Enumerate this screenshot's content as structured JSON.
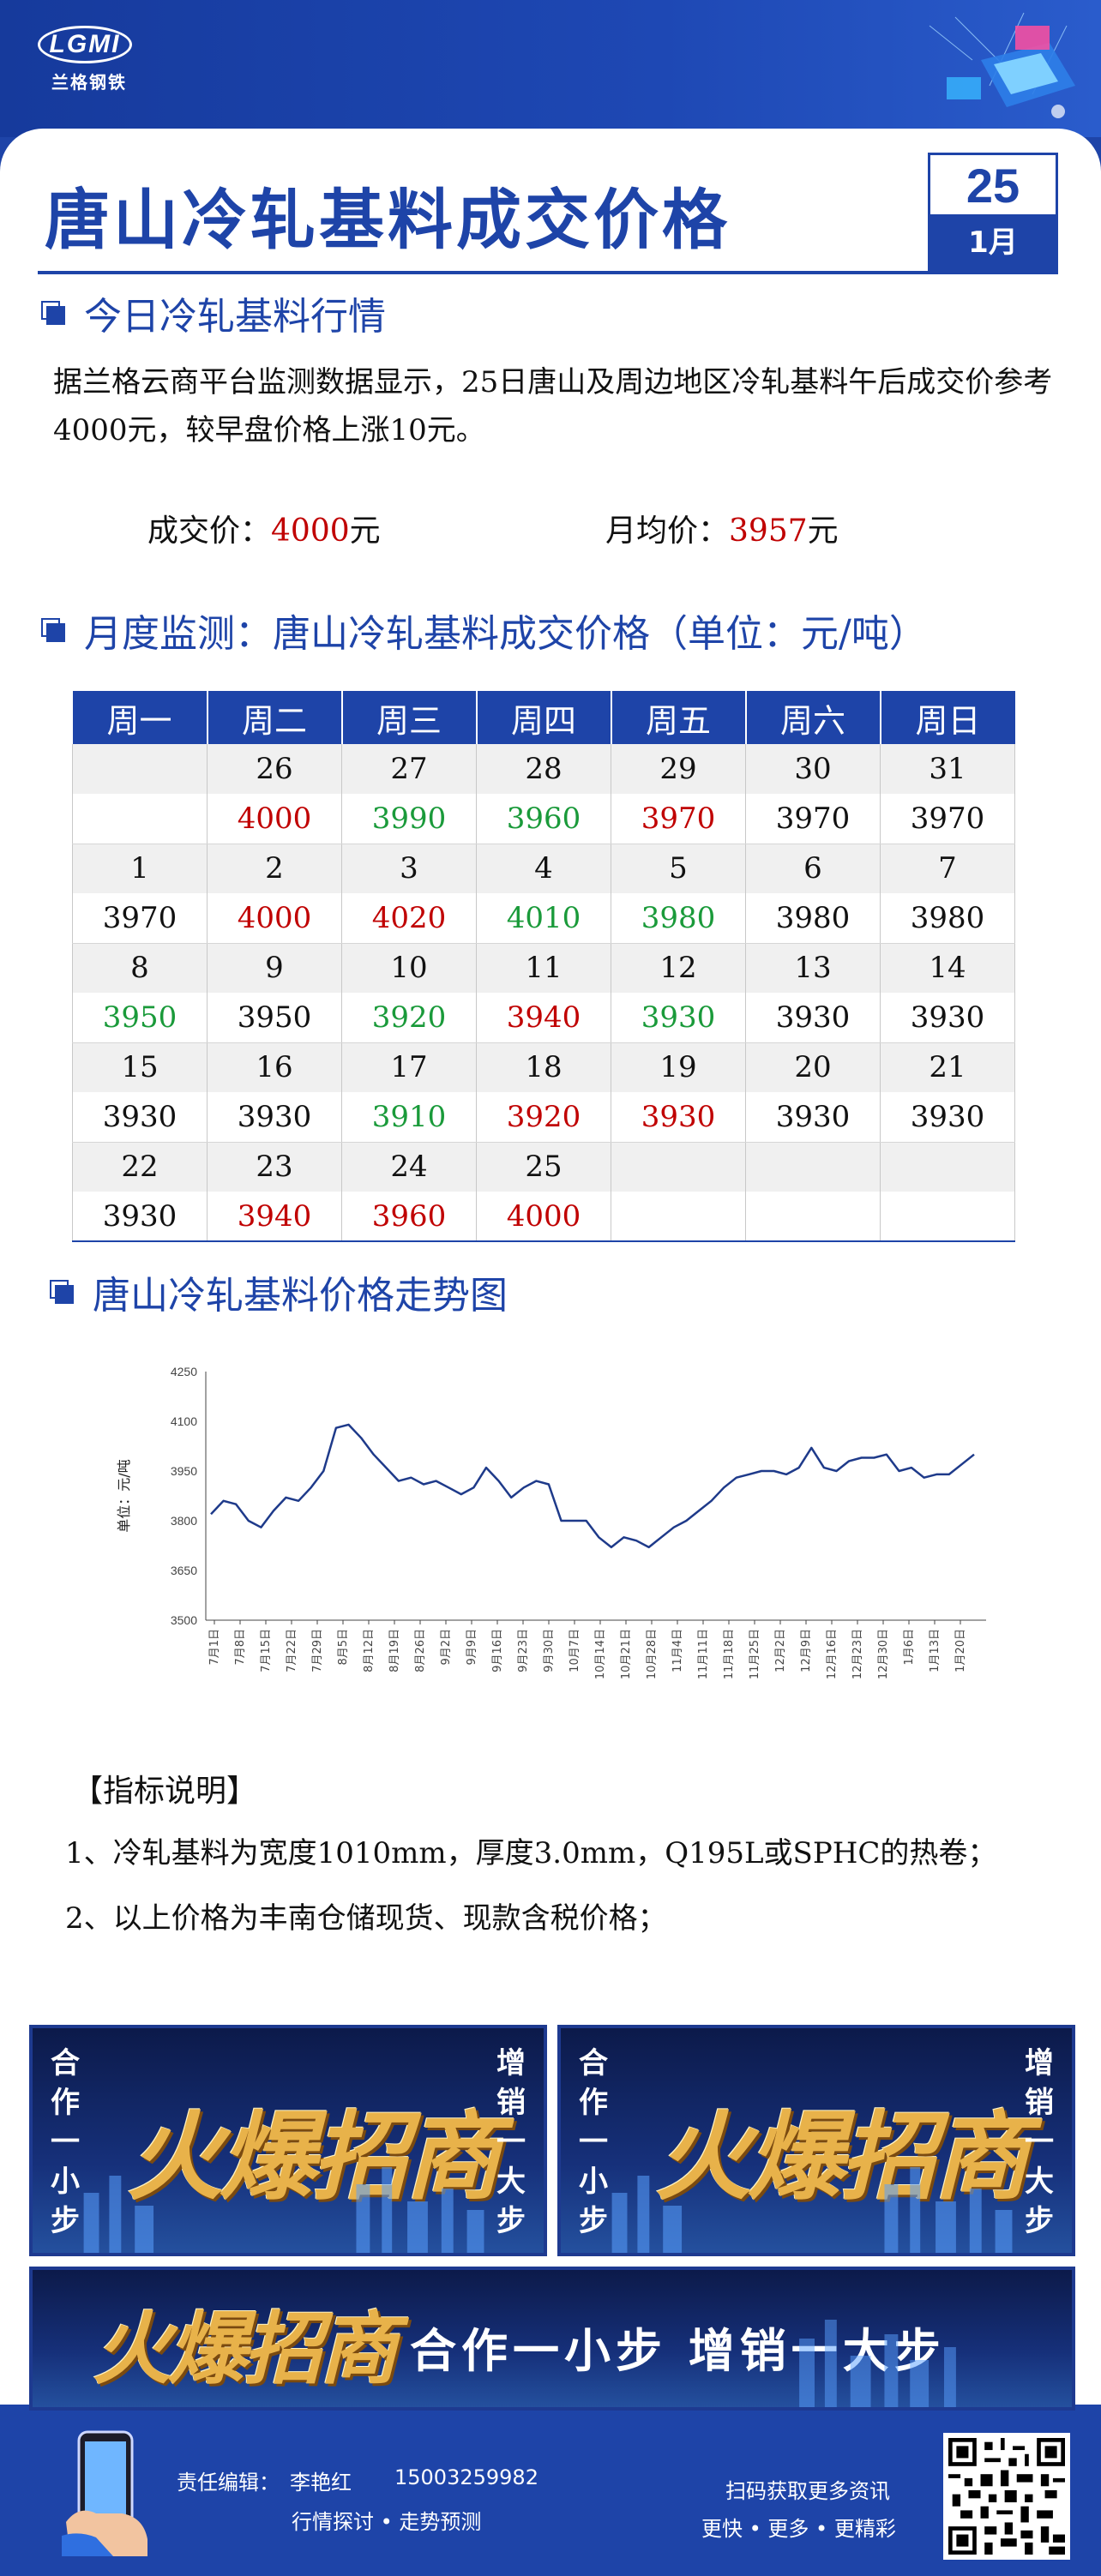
{
  "header": {
    "logo_mark": "LGMI",
    "logo_text": "兰格钢铁",
    "title": "唐山冷轧基料成交价格",
    "date_day": "25",
    "date_month": "1月"
  },
  "today": {
    "heading": "今日冷轧基料行情",
    "paragraph": "据兰格云商平台监测数据显示，25日唐山及周边地区冷轧基料午后成交价参考4000元，较早盘价格上涨10元。",
    "deal_label": "成交价：",
    "deal_value": "4000",
    "deal_unit": "元",
    "avg_label": "月均价：",
    "avg_value": "3957",
    "avg_unit": "元"
  },
  "monthly": {
    "heading": "月度监测：唐山冷轧基料成交价格（单位：元/吨）",
    "weekdays": [
      "周一",
      "周二",
      "周三",
      "周四",
      "周五",
      "周六",
      "周日"
    ],
    "weeks": [
      [
        {
          "d": "",
          "p": "",
          "t": ""
        },
        {
          "d": "26",
          "p": "4000",
          "t": "up"
        },
        {
          "d": "27",
          "p": "3990",
          "t": "down"
        },
        {
          "d": "28",
          "p": "3960",
          "t": "down"
        },
        {
          "d": "29",
          "p": "3970",
          "t": "up"
        },
        {
          "d": "30",
          "p": "3970",
          "t": ""
        },
        {
          "d": "31",
          "p": "3970",
          "t": ""
        }
      ],
      [
        {
          "d": "1",
          "p": "3970",
          "t": ""
        },
        {
          "d": "2",
          "p": "4000",
          "t": "up"
        },
        {
          "d": "3",
          "p": "4020",
          "t": "up"
        },
        {
          "d": "4",
          "p": "4010",
          "t": "down"
        },
        {
          "d": "5",
          "p": "3980",
          "t": "down"
        },
        {
          "d": "6",
          "p": "3980",
          "t": ""
        },
        {
          "d": "7",
          "p": "3980",
          "t": ""
        }
      ],
      [
        {
          "d": "8",
          "p": "3950",
          "t": "down"
        },
        {
          "d": "9",
          "p": "3950",
          "t": ""
        },
        {
          "d": "10",
          "p": "3920",
          "t": "down"
        },
        {
          "d": "11",
          "p": "3940",
          "t": "up"
        },
        {
          "d": "12",
          "p": "3930",
          "t": "down"
        },
        {
          "d": "13",
          "p": "3930",
          "t": ""
        },
        {
          "d": "14",
          "p": "3930",
          "t": ""
        }
      ],
      [
        {
          "d": "15",
          "p": "3930",
          "t": ""
        },
        {
          "d": "16",
          "p": "3930",
          "t": ""
        },
        {
          "d": "17",
          "p": "3910",
          "t": "down"
        },
        {
          "d": "18",
          "p": "3920",
          "t": "up"
        },
        {
          "d": "19",
          "p": "3930",
          "t": "up"
        },
        {
          "d": "20",
          "p": "3930",
          "t": ""
        },
        {
          "d": "21",
          "p": "3930",
          "t": ""
        }
      ],
      [
        {
          "d": "22",
          "p": "3930",
          "t": ""
        },
        {
          "d": "23",
          "p": "3940",
          "t": "up"
        },
        {
          "d": "24",
          "p": "3960",
          "t": "up"
        },
        {
          "d": "25",
          "p": "4000",
          "t": "up"
        },
        {
          "d": "",
          "p": "",
          "t": ""
        },
        {
          "d": "",
          "p": "",
          "t": ""
        },
        {
          "d": "",
          "p": "",
          "t": ""
        }
      ]
    ]
  },
  "trend": {
    "heading": "唐山冷轧基料价格走势图"
  },
  "chart_data": {
    "type": "line",
    "title": "",
    "ylabel": "单位：元/吨",
    "xlabel": "",
    "ylim": [
      3500,
      4250
    ],
    "yticks": [
      3500,
      3650,
      3800,
      3950,
      4100,
      4250
    ],
    "xticks": [
      "7月1日",
      "7月8日",
      "7月15日",
      "7月22日",
      "7月29日",
      "8月5日",
      "8月12日",
      "8月19日",
      "8月26日",
      "9月2日",
      "9月9日",
      "9月16日",
      "9月23日",
      "9月30日",
      "10月7日",
      "10月14日",
      "10月21日",
      "10月28日",
      "11月4日",
      "11月11日",
      "11月18日",
      "11月25日",
      "12月2日",
      "12月9日",
      "12月16日",
      "12月23日",
      "12月30日",
      "1月6日",
      "1月13日",
      "1月20日"
    ],
    "grid": false,
    "series": [
      {
        "values": [
          3820,
          3860,
          3850,
          3800,
          3780,
          3830,
          3870,
          3860,
          3900,
          3950,
          4080,
          4090,
          4050,
          4000,
          3960,
          3920,
          3930,
          3910,
          3920,
          3900,
          3880,
          3900,
          3960,
          3920,
          3870,
          3900,
          3920,
          3910,
          3800,
          3800,
          3800,
          3750,
          3720,
          3750,
          3740,
          3720,
          3750,
          3780,
          3800,
          3830,
          3860,
          3900,
          3930,
          3940,
          3950,
          3950,
          3940,
          3960,
          4020,
          3960,
          3950,
          3980,
          3990,
          3990,
          4000,
          3950,
          3960,
          3930,
          3940,
          3940,
          3970,
          4000
        ]
      }
    ]
  },
  "notes": {
    "title": "【指标说明】",
    "items": [
      "1、冷轧基料为宽度1010mm，厚度3.0mm，Q195L或SPHC的热卷；",
      "2、以上价格为丰南仓储现货、现款含税价格；"
    ]
  },
  "banners": {
    "left_side": "合作一小步",
    "right_side": "增销一大步",
    "big_text": "火爆招商",
    "slogan": "合作一小步  增销一大步"
  },
  "footer": {
    "editor_label": "责任编辑：",
    "editor_name": "李艳红",
    "phone": "15003259982",
    "tagline": "行情探讨 • 走势预测",
    "scan_text": "扫码获取更多资讯",
    "scan_tagline": "更快 • 更多 • 更精彩"
  },
  "colors": {
    "brand": "#1e44a8",
    "up": "#c00000",
    "down": "#1a9a3a",
    "chart_line": "#1e3a8a"
  }
}
